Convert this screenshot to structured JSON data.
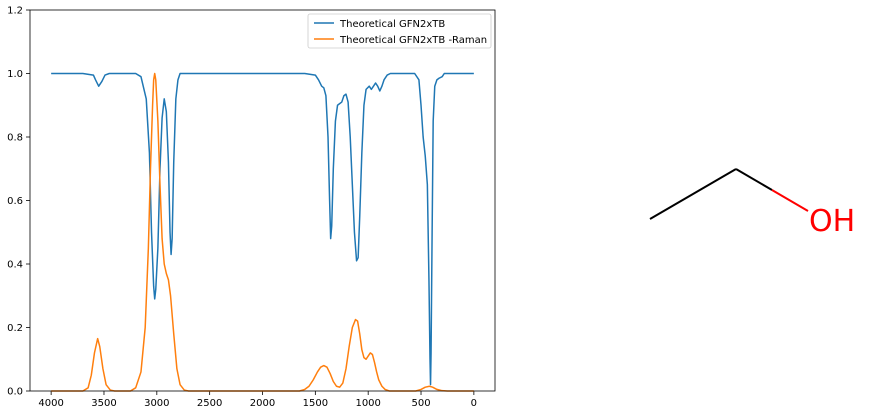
{
  "chart_data": {
    "type": "line",
    "x_range": [
      4000,
      0
    ],
    "xlim": [
      4200,
      -200
    ],
    "ylim": [
      0,
      1.2
    ],
    "x_ticks": [
      4000,
      3500,
      3000,
      2500,
      2000,
      1500,
      1000,
      500,
      0
    ],
    "y_ticks": [
      0.0,
      0.2,
      0.4,
      0.6,
      0.8,
      1.0,
      1.2
    ],
    "grid": false,
    "legend_position": "top-right",
    "series": [
      {
        "name": "Theoretical GFN2xTB",
        "color": "#1f77b4",
        "baseline": 1.0,
        "direction": "down",
        "points": [
          [
            4000,
            1.0
          ],
          [
            3700,
            1.0
          ],
          [
            3600,
            0.995
          ],
          [
            3580,
            0.98
          ],
          [
            3550,
            0.96
          ],
          [
            3520,
            0.975
          ],
          [
            3490,
            0.995
          ],
          [
            3450,
            1.0
          ],
          [
            3200,
            1.0
          ],
          [
            3150,
            0.99
          ],
          [
            3100,
            0.92
          ],
          [
            3070,
            0.75
          ],
          [
            3050,
            0.5
          ],
          [
            3030,
            0.33
          ],
          [
            3020,
            0.29
          ],
          [
            3010,
            0.32
          ],
          [
            2990,
            0.45
          ],
          [
            2970,
            0.7
          ],
          [
            2950,
            0.86
          ],
          [
            2930,
            0.92
          ],
          [
            2910,
            0.88
          ],
          [
            2890,
            0.72
          ],
          [
            2875,
            0.5
          ],
          [
            2865,
            0.43
          ],
          [
            2855,
            0.48
          ],
          [
            2840,
            0.72
          ],
          [
            2820,
            0.92
          ],
          [
            2800,
            0.98
          ],
          [
            2780,
            1.0
          ],
          [
            1600,
            1.0
          ],
          [
            1500,
            0.995
          ],
          [
            1470,
            0.98
          ],
          [
            1440,
            0.96
          ],
          [
            1420,
            0.955
          ],
          [
            1400,
            0.93
          ],
          [
            1380,
            0.8
          ],
          [
            1365,
            0.6
          ],
          [
            1355,
            0.48
          ],
          [
            1345,
            0.52
          ],
          [
            1330,
            0.7
          ],
          [
            1310,
            0.85
          ],
          [
            1290,
            0.9
          ],
          [
            1270,
            0.905
          ],
          [
            1250,
            0.91
          ],
          [
            1230,
            0.93
          ],
          [
            1210,
            0.935
          ],
          [
            1190,
            0.91
          ],
          [
            1170,
            0.8
          ],
          [
            1150,
            0.65
          ],
          [
            1130,
            0.5
          ],
          [
            1110,
            0.41
          ],
          [
            1095,
            0.42
          ],
          [
            1080,
            0.55
          ],
          [
            1060,
            0.75
          ],
          [
            1040,
            0.9
          ],
          [
            1020,
            0.95
          ],
          [
            990,
            0.96
          ],
          [
            970,
            0.95
          ],
          [
            950,
            0.96
          ],
          [
            930,
            0.97
          ],
          [
            910,
            0.96
          ],
          [
            890,
            0.945
          ],
          [
            870,
            0.96
          ],
          [
            850,
            0.98
          ],
          [
            820,
            0.995
          ],
          [
            790,
            1.0
          ],
          [
            560,
            1.0
          ],
          [
            520,
            0.98
          ],
          [
            500,
            0.9
          ],
          [
            480,
            0.8
          ],
          [
            460,
            0.74
          ],
          [
            440,
            0.65
          ],
          [
            425,
            0.35
          ],
          [
            415,
            0.1
          ],
          [
            410,
            0.02
          ],
          [
            405,
            0.12
          ],
          [
            395,
            0.5
          ],
          [
            385,
            0.85
          ],
          [
            370,
            0.96
          ],
          [
            350,
            0.98
          ],
          [
            330,
            0.985
          ],
          [
            300,
            0.99
          ],
          [
            280,
            1.0
          ],
          [
            0,
            1.0
          ]
        ]
      },
      {
        "name": "Theoretical GFN2xTB -Raman",
        "color": "#ff7f0e",
        "baseline": 0.0,
        "direction": "up",
        "points": [
          [
            4000,
            0.0
          ],
          [
            3700,
            0.0
          ],
          [
            3650,
            0.01
          ],
          [
            3620,
            0.05
          ],
          [
            3590,
            0.12
          ],
          [
            3560,
            0.165
          ],
          [
            3540,
            0.14
          ],
          [
            3510,
            0.07
          ],
          [
            3480,
            0.02
          ],
          [
            3440,
            0.003
          ],
          [
            3400,
            0.0
          ],
          [
            3250,
            0.0
          ],
          [
            3200,
            0.01
          ],
          [
            3150,
            0.06
          ],
          [
            3110,
            0.2
          ],
          [
            3080,
            0.45
          ],
          [
            3060,
            0.7
          ],
          [
            3040,
            0.9
          ],
          [
            3030,
            0.98
          ],
          [
            3020,
            1.0
          ],
          [
            3010,
            0.98
          ],
          [
            2990,
            0.85
          ],
          [
            2970,
            0.65
          ],
          [
            2950,
            0.48
          ],
          [
            2930,
            0.4
          ],
          [
            2910,
            0.37
          ],
          [
            2890,
            0.35
          ],
          [
            2870,
            0.3
          ],
          [
            2840,
            0.18
          ],
          [
            2810,
            0.07
          ],
          [
            2780,
            0.02
          ],
          [
            2740,
            0.003
          ],
          [
            2700,
            0.0
          ],
          [
            1650,
            0.0
          ],
          [
            1600,
            0.005
          ],
          [
            1560,
            0.015
          ],
          [
            1520,
            0.035
          ],
          [
            1480,
            0.06
          ],
          [
            1450,
            0.075
          ],
          [
            1420,
            0.08
          ],
          [
            1390,
            0.075
          ],
          [
            1360,
            0.055
          ],
          [
            1330,
            0.03
          ],
          [
            1300,
            0.015
          ],
          [
            1270,
            0.012
          ],
          [
            1240,
            0.025
          ],
          [
            1210,
            0.07
          ],
          [
            1180,
            0.14
          ],
          [
            1150,
            0.2
          ],
          [
            1120,
            0.225
          ],
          [
            1100,
            0.22
          ],
          [
            1080,
            0.18
          ],
          [
            1060,
            0.13
          ],
          [
            1040,
            0.105
          ],
          [
            1020,
            0.1
          ],
          [
            1000,
            0.11
          ],
          [
            980,
            0.12
          ],
          [
            960,
            0.115
          ],
          [
            940,
            0.09
          ],
          [
            920,
            0.06
          ],
          [
            900,
            0.035
          ],
          [
            870,
            0.015
          ],
          [
            840,
            0.005
          ],
          [
            800,
            0.0
          ],
          [
            550,
            0.0
          ],
          [
            500,
            0.005
          ],
          [
            460,
            0.012
          ],
          [
            420,
            0.015
          ],
          [
            390,
            0.012
          ],
          [
            350,
            0.005
          ],
          [
            300,
            0.001
          ],
          [
            250,
            0.0
          ],
          [
            0,
            0.0
          ]
        ]
      }
    ]
  },
  "molecule": {
    "bond_color": "#000000",
    "heteroatom_color": "#ff0000",
    "oxygen_label": "OH"
  }
}
